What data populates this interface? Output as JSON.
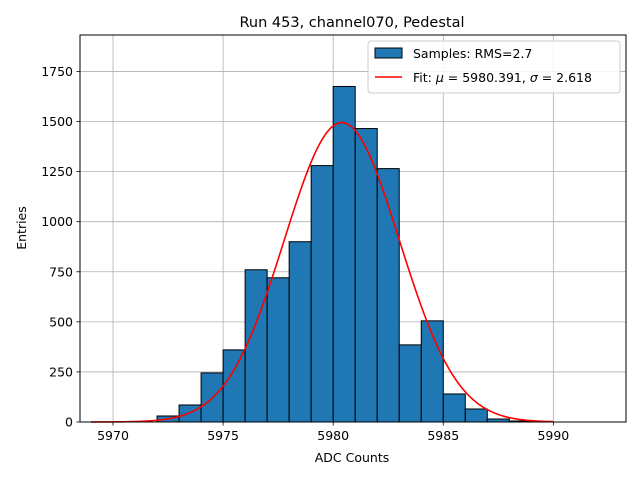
{
  "chart_data": {
    "type": "bar",
    "title": "Run 453, channel070, Pedestal",
    "xlabel": "ADC Counts",
    "ylabel": "Entries",
    "xlim": [
      5968.5,
      5993.3
    ],
    "ylim": [
      0,
      1932
    ],
    "grid": true,
    "legend_position": "top-right",
    "x_ticks": [
      5970,
      5975,
      5980,
      5985,
      5990
    ],
    "y_ticks": [
      0,
      250,
      500,
      750,
      1000,
      1250,
      1500,
      1750
    ],
    "bar_color": "#1f77b4",
    "fit_color": "#ff0000",
    "series": [
      {
        "name": "Samples: RMS=2.7",
        "kind": "histogram",
        "bins": [
          {
            "x0": 5972.0,
            "x1": 5973.0,
            "value": 30
          },
          {
            "x0": 5973.0,
            "x1": 5974.0,
            "value": 85
          },
          {
            "x0": 5974.0,
            "x1": 5975.0,
            "value": 245
          },
          {
            "x0": 5975.0,
            "x1": 5976.0,
            "value": 360
          },
          {
            "x0": 5976.0,
            "x1": 5977.0,
            "value": 760
          },
          {
            "x0": 5977.0,
            "x1": 5978.0,
            "value": 720
          },
          {
            "x0": 5978.0,
            "x1": 5979.0,
            "value": 900
          },
          {
            "x0": 5979.0,
            "x1": 5980.0,
            "value": 1280
          },
          {
            "x0": 5980.0,
            "x1": 5981.0,
            "value": 1675
          },
          {
            "x0": 5981.0,
            "x1": 5982.0,
            "value": 1465
          },
          {
            "x0": 5982.0,
            "x1": 5983.0,
            "value": 1265
          },
          {
            "x0": 5983.0,
            "x1": 5984.0,
            "value": 385
          },
          {
            "x0": 5984.0,
            "x1": 5985.0,
            "value": 505
          },
          {
            "x0": 5985.0,
            "x1": 5986.0,
            "value": 140
          },
          {
            "x0": 5986.0,
            "x1": 5987.0,
            "value": 65
          },
          {
            "x0": 5987.0,
            "x1": 5988.0,
            "value": 15
          },
          {
            "x0": 5988.0,
            "x1": 5989.0,
            "value": 5
          }
        ]
      },
      {
        "name": "Fit: μ = 5980.391, σ = 2.618",
        "kind": "gaussian",
        "mu": 5980.391,
        "sigma": 2.618,
        "amplitude": 1495,
        "x_range": [
          5969,
          5990
        ]
      }
    ],
    "legend": {
      "entries": [
        {
          "prefix": "Samples: RMS=2.7"
        },
        {
          "prefix": "Fit: ",
          "mu_sym": "μ",
          "mu_text": " = 5980.391, ",
          "sigma_sym": "σ",
          "sigma_text": " = 2.618"
        }
      ]
    }
  }
}
